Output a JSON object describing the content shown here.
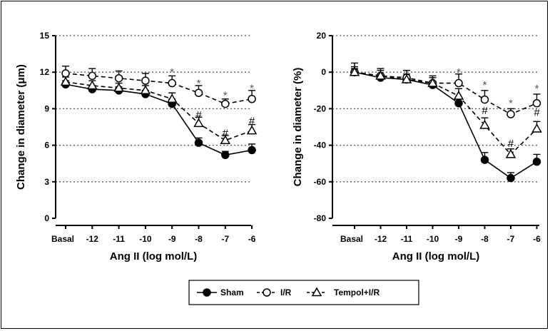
{
  "colors": {
    "marker": "#000000",
    "grid": "#555555",
    "asterisk": "#555555",
    "hash": "#000000"
  },
  "legend": [
    {
      "label": "Sham",
      "marker": "filled-circle",
      "line": "solid"
    },
    {
      "label": "I/R",
      "marker": "open-circle",
      "line": "dashed"
    },
    {
      "label": "Tempol+I/R",
      "marker": "open-triangle",
      "line": "dashed"
    }
  ],
  "chart_data": [
    {
      "type": "line",
      "xlabel": "Ang II (log mol/L)",
      "ylabel": "Change in diameter (μm)",
      "categories": [
        "Basal",
        "-12",
        "-11",
        "-10",
        "-9",
        "-8",
        "-7",
        "-6"
      ],
      "ylim": [
        0,
        15
      ],
      "yticks": [
        0,
        3,
        6,
        9,
        12,
        15
      ],
      "grid": true,
      "series": [
        {
          "name": "Sham",
          "values": [
            11.0,
            10.6,
            10.5,
            10.2,
            9.4,
            6.2,
            5.2,
            5.6
          ],
          "errors": [
            0.3,
            0.3,
            0.3,
            0.3,
            0.4,
            0.4,
            0.3,
            0.5
          ]
        },
        {
          "name": "I/R",
          "values": [
            11.9,
            11.7,
            11.5,
            11.3,
            11.1,
            10.3,
            9.4,
            9.8
          ],
          "errors": [
            0.6,
            0.6,
            0.6,
            0.6,
            0.6,
            0.6,
            0.4,
            0.7
          ]
        },
        {
          "name": "Tempol+I/R",
          "values": [
            11.2,
            10.9,
            10.7,
            10.5,
            9.8,
            7.8,
            6.4,
            7.2
          ],
          "errors": [
            0.4,
            0.4,
            0.4,
            0.4,
            0.5,
            0.5,
            0.4,
            0.5
          ]
        }
      ],
      "annotations": [
        {
          "text": "*",
          "category": "-9",
          "y": 12.0
        },
        {
          "text": "*",
          "category": "-8",
          "y": 11.1
        },
        {
          "text": "*",
          "category": "-7",
          "y": 10.1
        },
        {
          "text": "*",
          "category": "-6",
          "y": 10.7
        },
        {
          "text": "#",
          "category": "-8",
          "y": 8.5
        },
        {
          "text": "#",
          "category": "-7",
          "y": 7.0
        },
        {
          "text": "#",
          "category": "-6",
          "y": 8.0
        }
      ]
    },
    {
      "type": "line",
      "xlabel": "Ang II (log mol/L)",
      "ylabel": "Change in diameter (%)",
      "categories": [
        "Basal",
        "-12",
        "-11",
        "-10",
        "-9",
        "-8",
        "-7",
        "-6"
      ],
      "ylim": [
        -80,
        20
      ],
      "yticks": [
        -80,
        -60,
        -40,
        -20,
        0,
        20
      ],
      "grid": true,
      "series": [
        {
          "name": "Sham",
          "values": [
            0,
            -3,
            -4,
            -7,
            -17,
            -48,
            -58,
            -49
          ],
          "errors": [
            2,
            2,
            2,
            2,
            3,
            4,
            3,
            4
          ]
        },
        {
          "name": "I/R",
          "values": [
            0,
            -2,
            -3,
            -6,
            -6,
            -15,
            -23,
            -17
          ],
          "errors": [
            5,
            4,
            4,
            4,
            5,
            5,
            3,
            5
          ]
        },
        {
          "name": "Tempol+I/R",
          "values": [
            0,
            -2,
            -4,
            -6,
            -13,
            -29,
            -45,
            -31
          ],
          "errors": [
            3,
            3,
            3,
            3,
            4,
            4,
            3,
            4
          ]
        }
      ],
      "annotations": [
        {
          "text": "*",
          "category": "-9",
          "y": 0
        },
        {
          "text": "*",
          "category": "-8",
          "y": -7
        },
        {
          "text": "*",
          "category": "-7",
          "y": -17
        },
        {
          "text": "*",
          "category": "-6",
          "y": -9
        },
        {
          "text": "#",
          "category": "-8",
          "y": -21
        },
        {
          "text": "#",
          "category": "-7",
          "y": -39
        },
        {
          "text": "#",
          "category": "-6",
          "y": -22
        }
      ]
    }
  ]
}
